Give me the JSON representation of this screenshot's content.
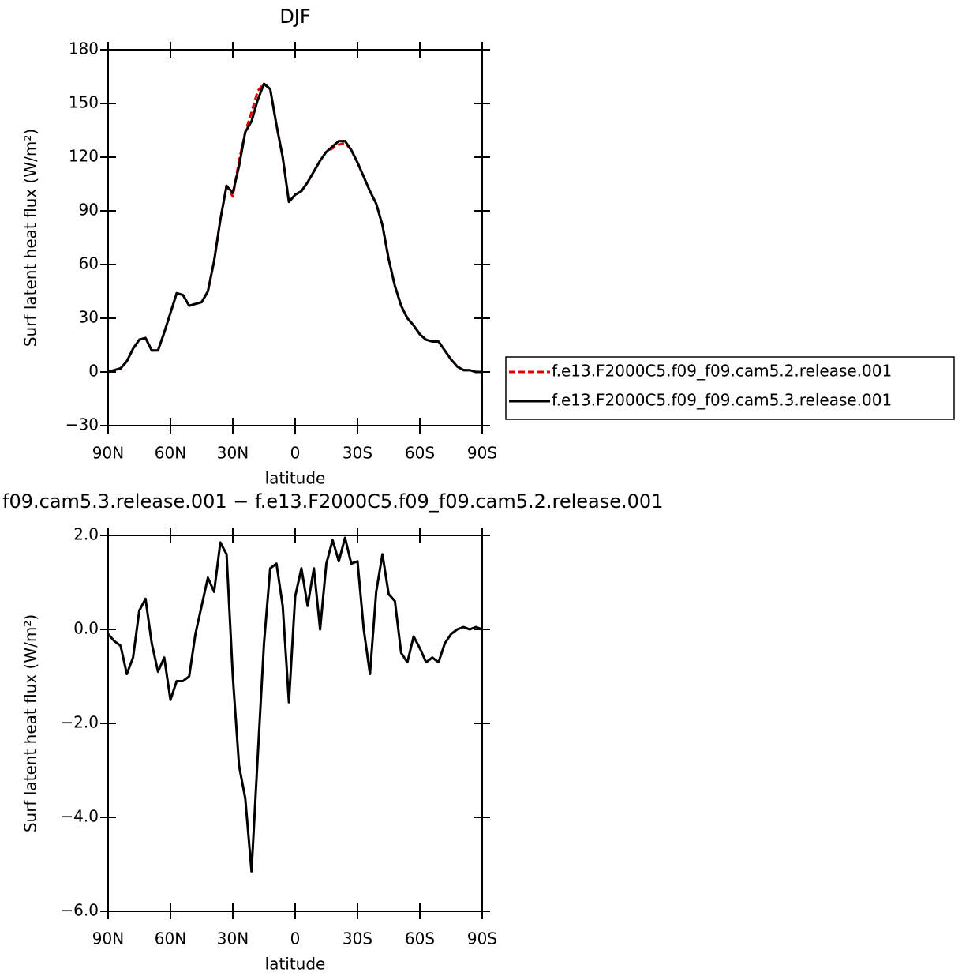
{
  "chart_data": [
    {
      "type": "line",
      "title": "DJF",
      "x_label": "latitude",
      "y_label": "Surf latent heat flux (W/m²)",
      "x": [
        90,
        87,
        84,
        81,
        78,
        75,
        72,
        69,
        66,
        63,
        60,
        57,
        54,
        51,
        48,
        45,
        42,
        39,
        36,
        33,
        30,
        27,
        24,
        21,
        18,
        15,
        12,
        9,
        6,
        3,
        0,
        -3,
        -6,
        -9,
        -12,
        -15,
        -18,
        -21,
        -24,
        -27,
        -30,
        -33,
        -36,
        -39,
        -42,
        -45,
        -48,
        -51,
        -54,
        -57,
        -60,
        -63,
        -66,
        -69,
        -72,
        -75,
        -78,
        -81,
        -84,
        -87,
        -90
      ],
      "series": [
        {
          "name": "f.e13.F2000C5.f09_f09.cam5.2.release.001",
          "color": "#e00000",
          "line_style": "dashed",
          "values": [
            0,
            1,
            2,
            6,
            13,
            18,
            19,
            12,
            12,
            22,
            33,
            44,
            43,
            37,
            38,
            39,
            45,
            62,
            85,
            104,
            98,
            118,
            134,
            145,
            157,
            161,
            158,
            138,
            120,
            95,
            99,
            101,
            106,
            112,
            118,
            123,
            125,
            127,
            128,
            124,
            117,
            109,
            101,
            94,
            82,
            63,
            48,
            37,
            30,
            26,
            21,
            18,
            17,
            17,
            12,
            7,
            3,
            1,
            1,
            0,
            0
          ]
        },
        {
          "name": "f.e13.F2000C5.f09_f09.cam5.3.release.001",
          "color": "#000000",
          "line_style": "solid",
          "values": [
            0,
            1,
            2,
            6,
            13,
            18,
            19,
            12,
            12,
            22,
            33,
            44,
            43,
            37,
            38,
            39,
            45,
            62,
            85,
            104,
            100,
            115,
            134,
            140,
            152,
            161,
            158,
            138,
            120,
            95,
            99,
            101,
            106,
            112,
            118,
            123,
            126,
            129,
            129,
            124,
            117,
            109,
            101,
            94,
            82,
            63,
            48,
            37,
            30,
            26,
            21,
            18,
            17,
            17,
            12,
            7,
            3,
            1,
            1,
            0,
            0
          ]
        }
      ],
      "xlim": [
        90,
        -90
      ],
      "xticks": [
        {
          "value": 90,
          "label": "90N"
        },
        {
          "value": 60,
          "label": "60N"
        },
        {
          "value": 30,
          "label": "30N"
        },
        0,
        {
          "value": -30,
          "label": "30S"
        },
        {
          "value": -60,
          "label": "60S"
        },
        {
          "value": -90,
          "label": "90S"
        }
      ],
      "ylim": [
        -30,
        180
      ],
      "yticks": [
        {
          "value": -30,
          "label": "−30"
        },
        0,
        30,
        60,
        90,
        120,
        150,
        180
      ],
      "legend": true
    },
    {
      "type": "line",
      "title": "f09.cam5.3.release.001  −  f.e13.F2000C5.f09_f09.cam5.2.release.001",
      "x_label": "latitude",
      "y_label": "Surf latent heat flux (W/m²)",
      "x": [
        90,
        87,
        84,
        81,
        78,
        75,
        72,
        69,
        66,
        63,
        60,
        57,
        54,
        51,
        48,
        45,
        42,
        39,
        36,
        33,
        30,
        27,
        24,
        21,
        18,
        15,
        12,
        9,
        6,
        3,
        0,
        -3,
        -6,
        -9,
        -12,
        -15,
        -18,
        -21,
        -24,
        -27,
        -30,
        -33,
        -36,
        -39,
        -42,
        -45,
        -48,
        -51,
        -54,
        -57,
        -60,
        -63,
        -66,
        -69,
        -72,
        -75,
        -78,
        -81,
        -84,
        -87,
        -90
      ],
      "series": [
        {
          "color": "#000000",
          "line_style": "solid",
          "values": [
            -0.1,
            -0.25,
            -0.35,
            -0.95,
            -0.6,
            0.4,
            0.65,
            -0.3,
            -0.9,
            -0.6,
            -1.5,
            -1.1,
            -1.1,
            -1.0,
            -0.1,
            0.5,
            1.1,
            0.8,
            1.85,
            1.6,
            -1.0,
            -2.9,
            -3.6,
            -5.15,
            -2.7,
            -0.3,
            1.3,
            1.4,
            0.5,
            -1.55,
            0.7,
            1.3,
            0.5,
            1.3,
            0.0,
            1.4,
            1.9,
            1.45,
            1.95,
            1.4,
            1.45,
            0.0,
            -0.95,
            0.8,
            1.6,
            0.75,
            0.6,
            -0.5,
            -0.7,
            -0.15,
            -0.4,
            -0.7,
            -0.6,
            -0.7,
            -0.3,
            -0.1,
            0.0,
            0.05,
            0.0,
            0.05,
            0.0
          ]
        }
      ],
      "xlim": [
        90,
        -90
      ],
      "xticks": [
        {
          "value": 90,
          "label": "90N"
        },
        {
          "value": 60,
          "label": "60N"
        },
        {
          "value": 30,
          "label": "30N"
        },
        0,
        {
          "value": -30,
          "label": "30S"
        },
        {
          "value": -60,
          "label": "60S"
        },
        {
          "value": -90,
          "label": "90S"
        }
      ],
      "ylim": [
        -6,
        2
      ],
      "yticks": [
        {
          "value": -6,
          "label": "−6.0"
        },
        {
          "value": -4,
          "label": "−4.0"
        },
        {
          "value": -2,
          "label": "−2.0"
        },
        {
          "value": 0,
          "label": "0.0"
        },
        {
          "value": 2,
          "label": "2.0"
        }
      ],
      "legend": false
    }
  ]
}
